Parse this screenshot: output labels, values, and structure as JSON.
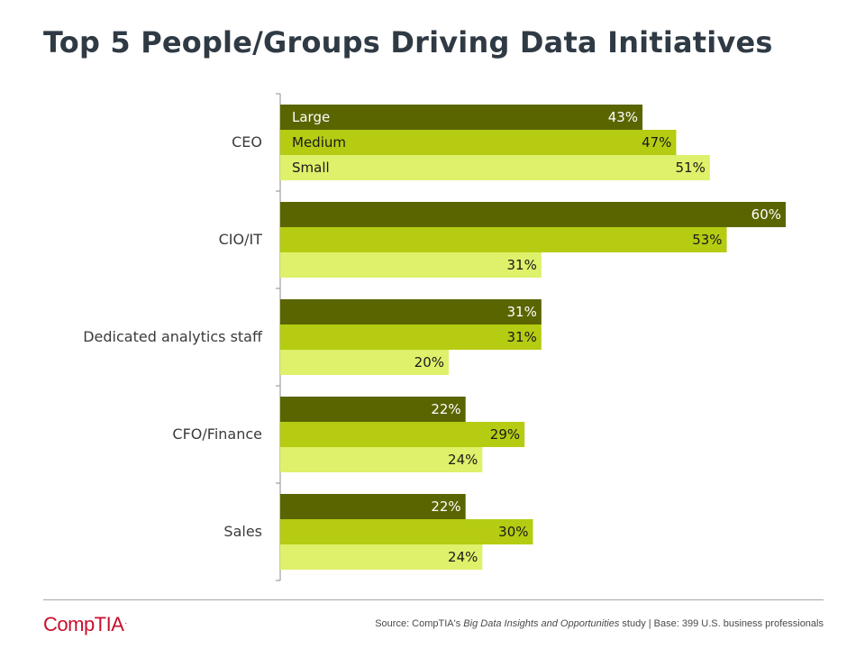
{
  "title": "Top 5 People/Groups Driving Data Initiatives",
  "chart_data": {
    "type": "bar",
    "orientation": "horizontal",
    "title": "Top 5 People/Groups Driving Data Initiatives",
    "categories": [
      "CEO",
      "CIO/IT",
      "Dedicated analytics staff",
      "CFO/Finance",
      "Sales"
    ],
    "series": [
      {
        "name": "Large",
        "values": [
          43,
          60,
          31,
          22,
          22
        ],
        "color": "#5a6500",
        "label_color": "#ffffff"
      },
      {
        "name": "Medium",
        "values": [
          47,
          53,
          31,
          29,
          30
        ],
        "color": "#b5cc12",
        "label_color": "#1a1a1a"
      },
      {
        "name": "Small",
        "values": [
          51,
          31,
          20,
          24,
          24
        ],
        "color": "#dff06a",
        "label_color": "#1a1a1a"
      }
    ],
    "value_suffix": "%",
    "legend": "inside-first-group",
    "xlim": [
      0,
      60
    ],
    "grid": false
  },
  "footer": {
    "logo_text": "CompTIA",
    "logo_dot": ".",
    "source_prefix": "Source: CompTIA's ",
    "source_title": "Big Data Insights and Opportunities",
    "source_suffix": " study | Base: 399 U.S. business professionals"
  }
}
